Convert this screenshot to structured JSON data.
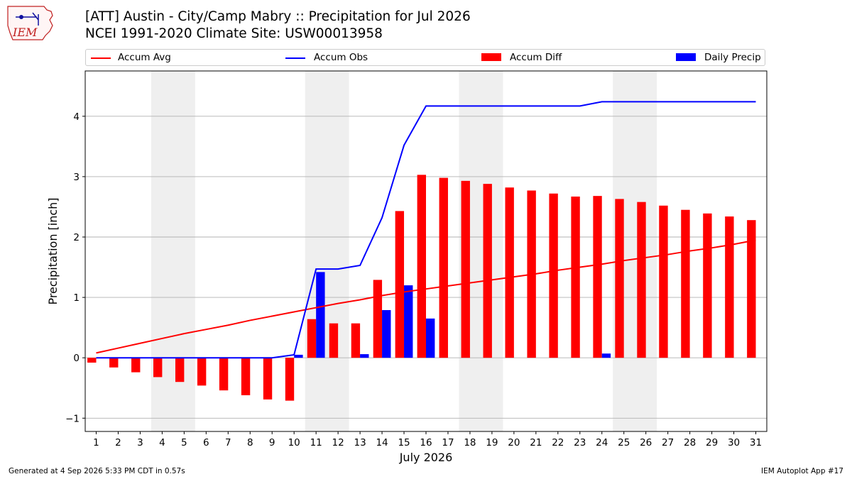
{
  "header": {
    "title_line1": "[ATT] Austin - City/Camp Mabry :: Precipitation for Jul 2026",
    "title_line2": "NCEI 1991-2020 Climate Site: USW00013958",
    "logo_text": "IEM"
  },
  "footer": {
    "left": "Generated at 4 Sep 2026 5:33 PM CDT in 0.57s",
    "right": "IEM Autoplot App #17"
  },
  "colors": {
    "avg": "#ff0000",
    "obs": "#0000ff",
    "diff": "#ff0000",
    "daily": "#0000ff",
    "weekend_band": "#efefef",
    "grid": "#b0b0b0"
  },
  "chart_data": {
    "type": "bar",
    "xlabel": "July 2026",
    "ylabel": "Precipitation [inch]",
    "ylim": [
      -1.22,
      4.75
    ],
    "yticks": [
      "−1",
      "0",
      "1",
      "2",
      "3",
      "4"
    ],
    "ytick_values": [
      -1,
      0,
      1,
      2,
      3,
      4
    ],
    "grid": "horizontal",
    "legend_placement": "top",
    "weekend_bands": [
      [
        4,
        5
      ],
      [
        11,
        12
      ],
      [
        18,
        19
      ],
      [
        25,
        26
      ]
    ],
    "x": [
      1,
      2,
      3,
      4,
      5,
      6,
      7,
      8,
      9,
      10,
      11,
      12,
      13,
      14,
      15,
      16,
      17,
      18,
      19,
      20,
      21,
      22,
      23,
      24,
      25,
      26,
      27,
      28,
      29,
      30,
      31
    ],
    "series": [
      {
        "name": "Accum Avg",
        "kind": "line",
        "values": [
          0.08,
          0.16,
          0.24,
          0.32,
          0.4,
          0.47,
          0.54,
          0.62,
          0.69,
          0.76,
          0.83,
          0.9,
          0.96,
          1.03,
          1.09,
          1.14,
          1.19,
          1.24,
          1.29,
          1.34,
          1.39,
          1.45,
          1.5,
          1.55,
          1.61,
          1.66,
          1.71,
          1.77,
          1.82,
          1.88,
          1.95
        ]
      },
      {
        "name": "Accum Obs",
        "kind": "line",
        "values": [
          0,
          0,
          0,
          0,
          0,
          0,
          0,
          0,
          0,
          0.05,
          1.47,
          1.47,
          1.53,
          2.32,
          3.52,
          4.17,
          4.17,
          4.17,
          4.17,
          4.17,
          4.17,
          4.17,
          4.17,
          4.24,
          4.24,
          4.24,
          4.24,
          4.24,
          4.24,
          4.24,
          4.24
        ]
      },
      {
        "name": "Accum Diff",
        "kind": "bar",
        "values": [
          -0.08,
          -0.16,
          -0.24,
          -0.32,
          -0.4,
          -0.46,
          -0.54,
          -0.62,
          -0.69,
          -0.71,
          0.64,
          0.57,
          0.57,
          1.29,
          2.43,
          3.03,
          2.98,
          2.93,
          2.88,
          2.82,
          2.77,
          2.72,
          2.67,
          2.68,
          2.63,
          2.58,
          2.52,
          2.45,
          2.39,
          2.34,
          2.28
        ]
      },
      {
        "name": "Daily Precip",
        "kind": "bar",
        "values": [
          0,
          0,
          0,
          0,
          0,
          0,
          0,
          0,
          0,
          0.05,
          1.42,
          0,
          0.06,
          0.79,
          1.2,
          0.65,
          0,
          0,
          0,
          0,
          0,
          0,
          0,
          0.07,
          0,
          0,
          0,
          0,
          0,
          0,
          0
        ]
      }
    ]
  }
}
